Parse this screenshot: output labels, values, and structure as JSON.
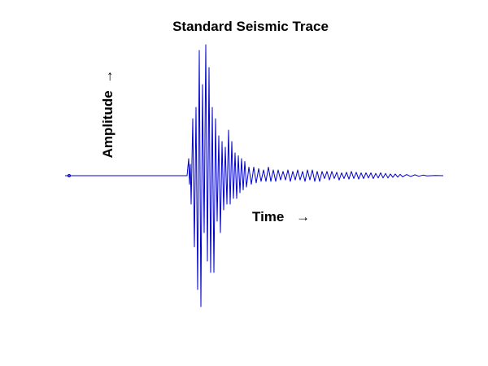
{
  "chart_data": {
    "type": "line",
    "title": "Standard Seismic Trace",
    "xlabel": "Time",
    "ylabel": "Amplitude",
    "arrow_glyph": "→",
    "grid": false,
    "legend": "none",
    "series_color": "#0000cc",
    "series": [
      {
        "points": [
          [
            0,
            0
          ],
          [
            150,
            0
          ],
          [
            152,
            0.6
          ],
          [
            153,
            -0.3
          ],
          [
            154,
            0.4
          ],
          [
            155,
            -1.0
          ],
          [
            157,
            2.0
          ],
          [
            159,
            -2.5
          ],
          [
            161,
            2.4
          ],
          [
            163,
            -4.0
          ],
          [
            165,
            4.4
          ],
          [
            167,
            -4.6
          ],
          [
            169,
            3.2
          ],
          [
            171,
            -2.0
          ],
          [
            173,
            4.6
          ],
          [
            175,
            -3.0
          ],
          [
            177,
            3.8
          ],
          [
            179,
            -3.4
          ],
          [
            181,
            2.4
          ],
          [
            183,
            -3.4
          ],
          [
            185,
            2.0
          ],
          [
            187,
            -1.6
          ],
          [
            189,
            1.4
          ],
          [
            191,
            -2.0
          ],
          [
            193,
            1.2
          ],
          [
            195,
            -1.2
          ],
          [
            197,
            1.0
          ],
          [
            199,
            -1.0
          ],
          [
            201,
            1.6
          ],
          [
            203,
            -1.0
          ],
          [
            205,
            1.2
          ],
          [
            207,
            -0.8
          ],
          [
            209,
            0.8
          ],
          [
            211,
            -0.8
          ],
          [
            213,
            0.7
          ],
          [
            215,
            -0.6
          ],
          [
            217,
            0.6
          ],
          [
            219,
            -0.5
          ],
          [
            221,
            0.5
          ],
          [
            223,
            -0.4
          ],
          [
            226,
            0.3
          ],
          [
            229,
            -0.3
          ],
          [
            232,
            0.3
          ],
          [
            235,
            -0.25
          ],
          [
            238,
            0.25
          ],
          [
            241,
            -0.2
          ],
          [
            244,
            0.2
          ],
          [
            247,
            -0.2
          ],
          [
            250,
            0.3
          ],
          [
            253,
            -0.2
          ],
          [
            256,
            0.2
          ],
          [
            259,
            -0.2
          ],
          [
            262,
            0.2
          ],
          [
            265,
            -0.15
          ],
          [
            268,
            0.15
          ],
          [
            271,
            -0.15
          ],
          [
            274,
            0.2
          ],
          [
            277,
            -0.2
          ],
          [
            280,
            0.15
          ],
          [
            283,
            -0.15
          ],
          [
            286,
            0.2
          ],
          [
            289,
            -0.15
          ],
          [
            292,
            0.15
          ],
          [
            295,
            -0.2
          ],
          [
            298,
            0.2
          ],
          [
            301,
            -0.15
          ],
          [
            304,
            0.2
          ],
          [
            307,
            -0.2
          ],
          [
            310,
            0.15
          ],
          [
            313,
            -0.2
          ],
          [
            316,
            0.15
          ],
          [
            319,
            -0.1
          ],
          [
            322,
            0.15
          ],
          [
            325,
            -0.15
          ],
          [
            328,
            0.15
          ],
          [
            331,
            -0.1
          ],
          [
            334,
            0.12
          ],
          [
            337,
            -0.15
          ],
          [
            340,
            0.1
          ],
          [
            343,
            -0.1
          ],
          [
            346,
            0.12
          ],
          [
            349,
            -0.12
          ],
          [
            352,
            0.15
          ],
          [
            355,
            -0.1
          ],
          [
            358,
            0.12
          ],
          [
            361,
            -0.12
          ],
          [
            364,
            0.1
          ],
          [
            367,
            -0.1
          ],
          [
            370,
            0.1
          ],
          [
            373,
            -0.08
          ],
          [
            376,
            0.1
          ],
          [
            379,
            -0.1
          ],
          [
            382,
            0.08
          ],
          [
            385,
            -0.08
          ],
          [
            388,
            0.1
          ],
          [
            391,
            -0.08
          ],
          [
            394,
            0.08
          ],
          [
            397,
            -0.08
          ],
          [
            400,
            0.06
          ],
          [
            403,
            -0.06
          ],
          [
            406,
            0.06
          ],
          [
            409,
            -0.05
          ],
          [
            412,
            0.05
          ],
          [
            415,
            -0.04
          ],
          [
            420,
            0.04
          ],
          [
            425,
            -0.03
          ],
          [
            430,
            0.03
          ],
          [
            435,
            -0.02
          ],
          [
            440,
            0.02
          ],
          [
            445,
            -0.01
          ],
          [
            455,
            0.01
          ],
          [
            465,
            0
          ]
        ]
      }
    ]
  }
}
